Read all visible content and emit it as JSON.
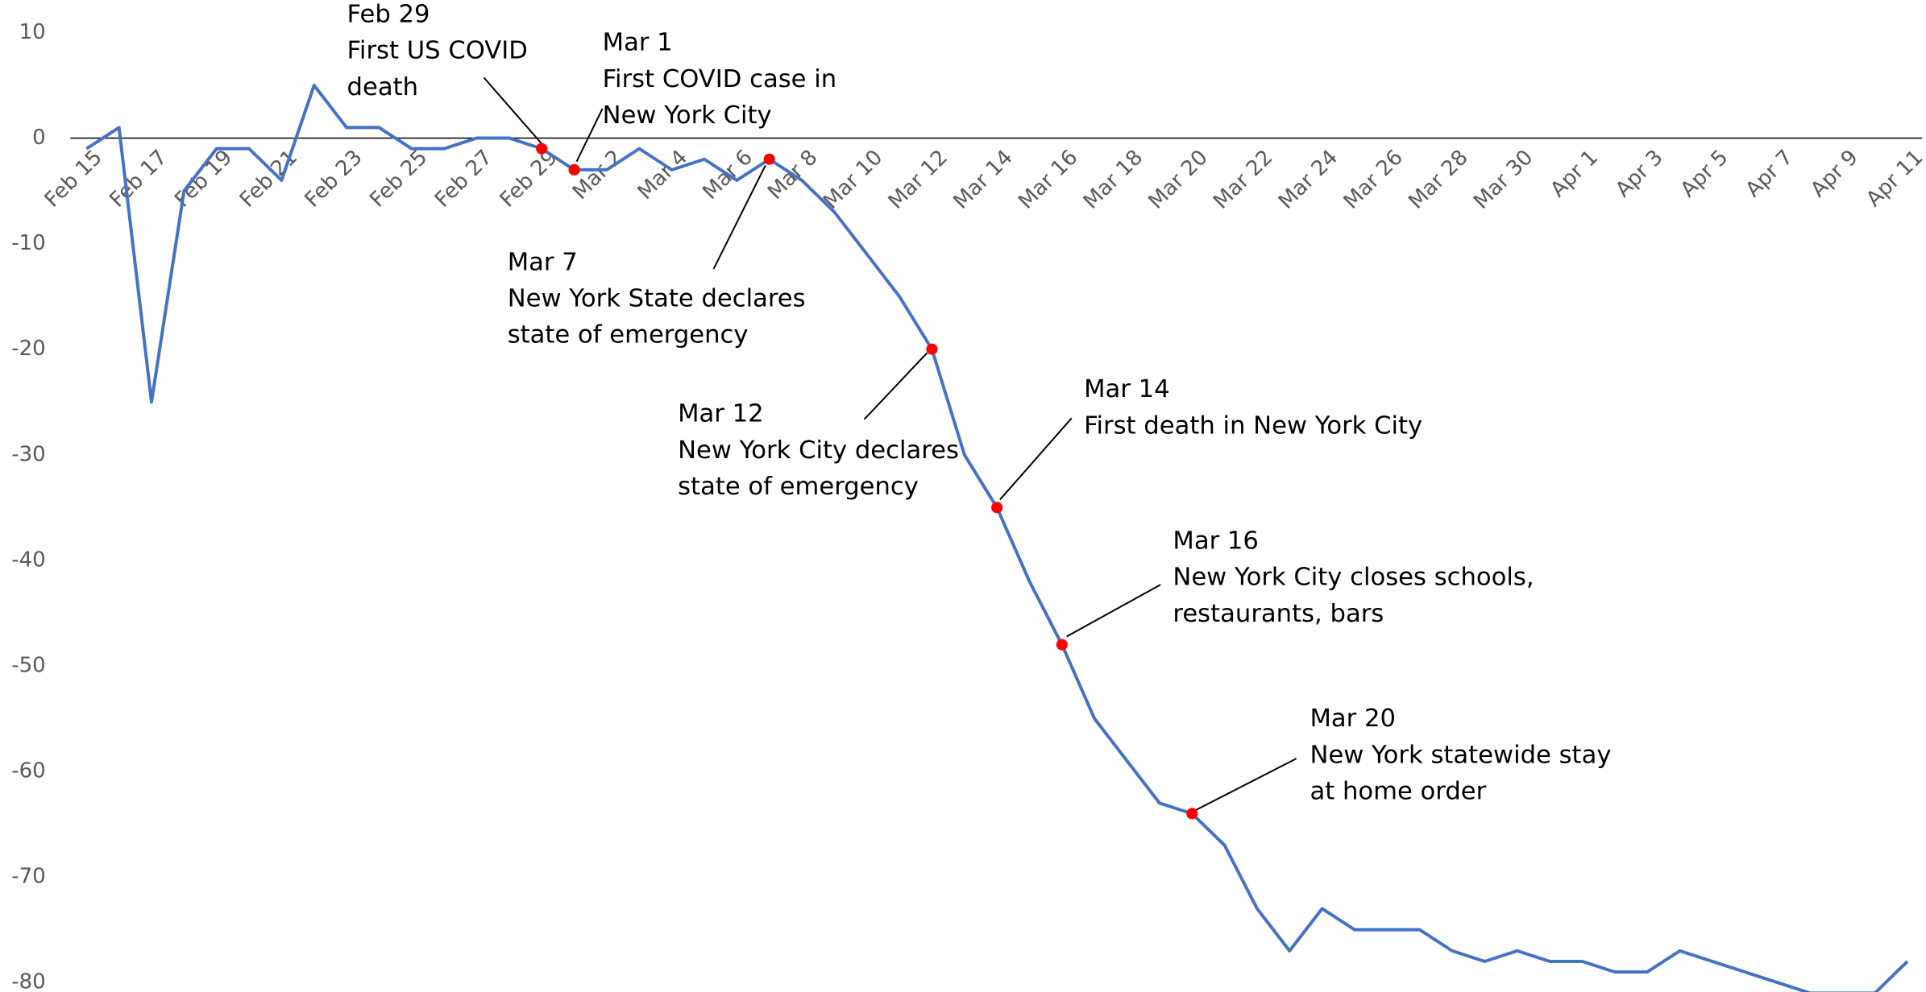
{
  "chart_data": {
    "type": "line",
    "categories": [
      "Feb 15",
      null,
      "Feb 17",
      null,
      "Feb 19",
      null,
      "Feb 21",
      null,
      "Feb 23",
      null,
      "Feb 25",
      null,
      "Feb 27",
      null,
      "Feb 29",
      null,
      "Mar 2",
      null,
      "Mar 4",
      null,
      "Mar 6",
      null,
      "Mar 8",
      null,
      "Mar 10",
      null,
      "Mar 12",
      null,
      "Mar 14",
      null,
      "Mar 16",
      null,
      "Mar 18",
      null,
      "Mar 20",
      null,
      "Mar 22",
      null,
      "Mar 24",
      null,
      "Mar 26",
      null,
      "Mar 28",
      null,
      "Mar 30",
      null,
      "Apr 1",
      null,
      "Apr 3",
      null,
      "Apr 5",
      null,
      "Apr 7",
      null,
      "Apr 9",
      null,
      "Apr 11"
    ],
    "series": [
      {
        "color": "#4472c4",
        "values": [
          -1,
          1,
          -25,
          -5,
          -1,
          -1,
          -4,
          5,
          1,
          1,
          -1,
          -1,
          0,
          0,
          -1,
          -3,
          -3,
          -1,
          -3,
          -2,
          -4,
          -2,
          -4,
          -7,
          -11,
          -15,
          -20,
          -30,
          -35,
          -42,
          -48,
          -55,
          -59,
          -63,
          -64,
          -67,
          -73,
          -77,
          -73,
          -75,
          -75,
          -75,
          -77,
          -78,
          -77,
          -78,
          -78,
          -79,
          -79,
          -77,
          -78,
          -79,
          -80,
          -81,
          -81,
          -81,
          -78
        ]
      }
    ],
    "marker_color": "#ff0000",
    "ylim": [
      -80,
      10
    ],
    "yticks": [
      -80,
      -70,
      -60,
      -50,
      -40,
      -30,
      -20,
      -10,
      0,
      10
    ],
    "annotations": [
      {
        "lines": [
          "Feb 29",
          "First US COVID",
          "death"
        ]
      },
      {
        "lines": [
          "Mar 1",
          "First COVID case in",
          "New York City"
        ]
      },
      {
        "lines": [
          "Mar 7",
          "New York State declares",
          "state of emergency"
        ]
      },
      {
        "lines": [
          "Mar 12",
          "New York City declares",
          "state of emergency"
        ]
      },
      {
        "lines": [
          "Mar 14",
          "First death in New York City"
        ]
      },
      {
        "lines": [
          "Mar 16",
          "New York City closes schools,",
          "restaurants, bars"
        ]
      },
      {
        "lines": [
          "Mar 20",
          "New York statewide stay",
          "at home order"
        ]
      }
    ]
  }
}
